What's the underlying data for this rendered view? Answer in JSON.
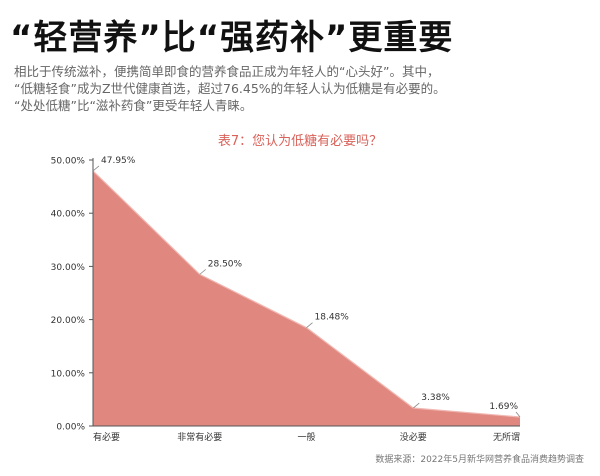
{
  "headline": "“轻营养”比“强药补”更重要",
  "intro": {
    "line1": "相比于传统滋补，便携简单即食的营养食品正成为年轻人的“心头好”。其中，",
    "line2": "“低糖轻食”成为Z世代健康首选，超过76.45%的年轻人认为低糖是有必要的。",
    "line3": "“处处低糖”比“滋补药食”更受年轻人青睐。"
  },
  "source": "数据来源：2022年5月新华网营养食品消费趋势调查",
  "colors": {
    "area_fill": "#e08880",
    "title_color": "#d9625a",
    "axis_color": "#555555"
  },
  "chart_data": {
    "type": "area",
    "title": "表7：您认为低糖有必要吗？",
    "categories": [
      "有必要",
      "非常有必要",
      "一般",
      "没必要",
      "无所谓"
    ],
    "values": [
      47.95,
      28.5,
      18.48,
      3.38,
      1.69
    ],
    "value_labels": [
      "47.95%",
      "28.50%",
      "18.48%",
      "3.38%",
      "1.69%"
    ],
    "y_ticks": [
      "0.00%",
      "10.00%",
      "20.00%",
      "30.00%",
      "40.00%",
      "50.00%"
    ],
    "y_tick_values": [
      0,
      10,
      20,
      30,
      40,
      50
    ],
    "ylim": [
      0,
      50
    ],
    "xlabel": "",
    "ylabel": "",
    "grid": false,
    "legend": "none"
  }
}
